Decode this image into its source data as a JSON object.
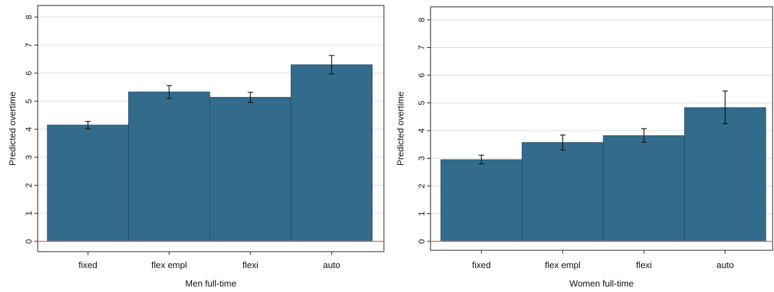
{
  "chart_data": [
    {
      "type": "bar",
      "title": "",
      "xlabel": "Men full-time",
      "ylabel": "Predicted overtime",
      "ylim": [
        0,
        8
      ],
      "yticks": [
        "0",
        "1",
        "2",
        "3",
        "4",
        "5",
        "6",
        "7",
        "8"
      ],
      "categories": [
        "fixed",
        "flex empl",
        "flexi",
        "auto"
      ],
      "values": [
        4.15,
        5.33,
        5.14,
        6.3
      ],
      "error_low": [
        4.02,
        5.1,
        4.96,
        5.97
      ],
      "error_high": [
        4.28,
        5.56,
        5.32,
        6.63
      ],
      "grid": true,
      "bar_color": "#336b8c",
      "zero_line_color": "#e66a6a"
    },
    {
      "type": "bar",
      "title": "",
      "xlabel": "Women full-time",
      "ylabel": "Predicted overtime",
      "ylim": [
        0,
        8
      ],
      "yticks": [
        "0",
        "1",
        "2",
        "3",
        "4",
        "5",
        "6",
        "7",
        "8"
      ],
      "categories": [
        "fixed",
        "flex empl",
        "flexi",
        "auto"
      ],
      "values": [
        2.95,
        3.57,
        3.82,
        4.83
      ],
      "error_low": [
        2.8,
        3.3,
        3.58,
        4.25
      ],
      "error_high": [
        3.11,
        3.84,
        4.07,
        5.43
      ],
      "grid": true,
      "bar_color": "#336b8c",
      "zero_line_color": "#e66a6a"
    }
  ]
}
